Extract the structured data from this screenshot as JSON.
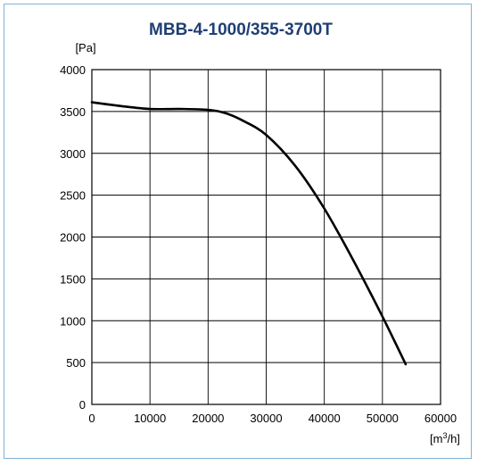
{
  "chart_data": {
    "type": "line",
    "title": "MBB-4-1000/355-3700T",
    "ylabel": "[Pa]",
    "xlabel_prefix": "[m",
    "xlabel_sup": "3",
    "xlabel_suffix": "/h]",
    "xlim": [
      0,
      60000
    ],
    "ylim": [
      0,
      4000
    ],
    "x_ticks": [
      0,
      10000,
      20000,
      30000,
      40000,
      50000,
      60000
    ],
    "y_ticks": [
      0,
      500,
      1000,
      1500,
      2000,
      2500,
      3000,
      3500,
      4000
    ],
    "x_tick_labels": [
      "0",
      "10000",
      "20000",
      "30000",
      "40000",
      "50000",
      "60000"
    ],
    "y_tick_labels": [
      "0",
      "500",
      "1000",
      "1500",
      "2000",
      "2500",
      "3000",
      "3500",
      "4000"
    ],
    "grid": true,
    "line_color": "#000000",
    "title_color": "#1f3f73",
    "series": [
      {
        "x": [
          0,
          5000,
          10000,
          15000,
          20000,
          23000,
          26000,
          30000,
          35000,
          40000,
          45000,
          50000,
          54000
        ],
        "values": [
          3610,
          3565,
          3530,
          3530,
          3520,
          3480,
          3390,
          3220,
          2850,
          2340,
          1720,
          1050,
          480
        ]
      }
    ]
  }
}
